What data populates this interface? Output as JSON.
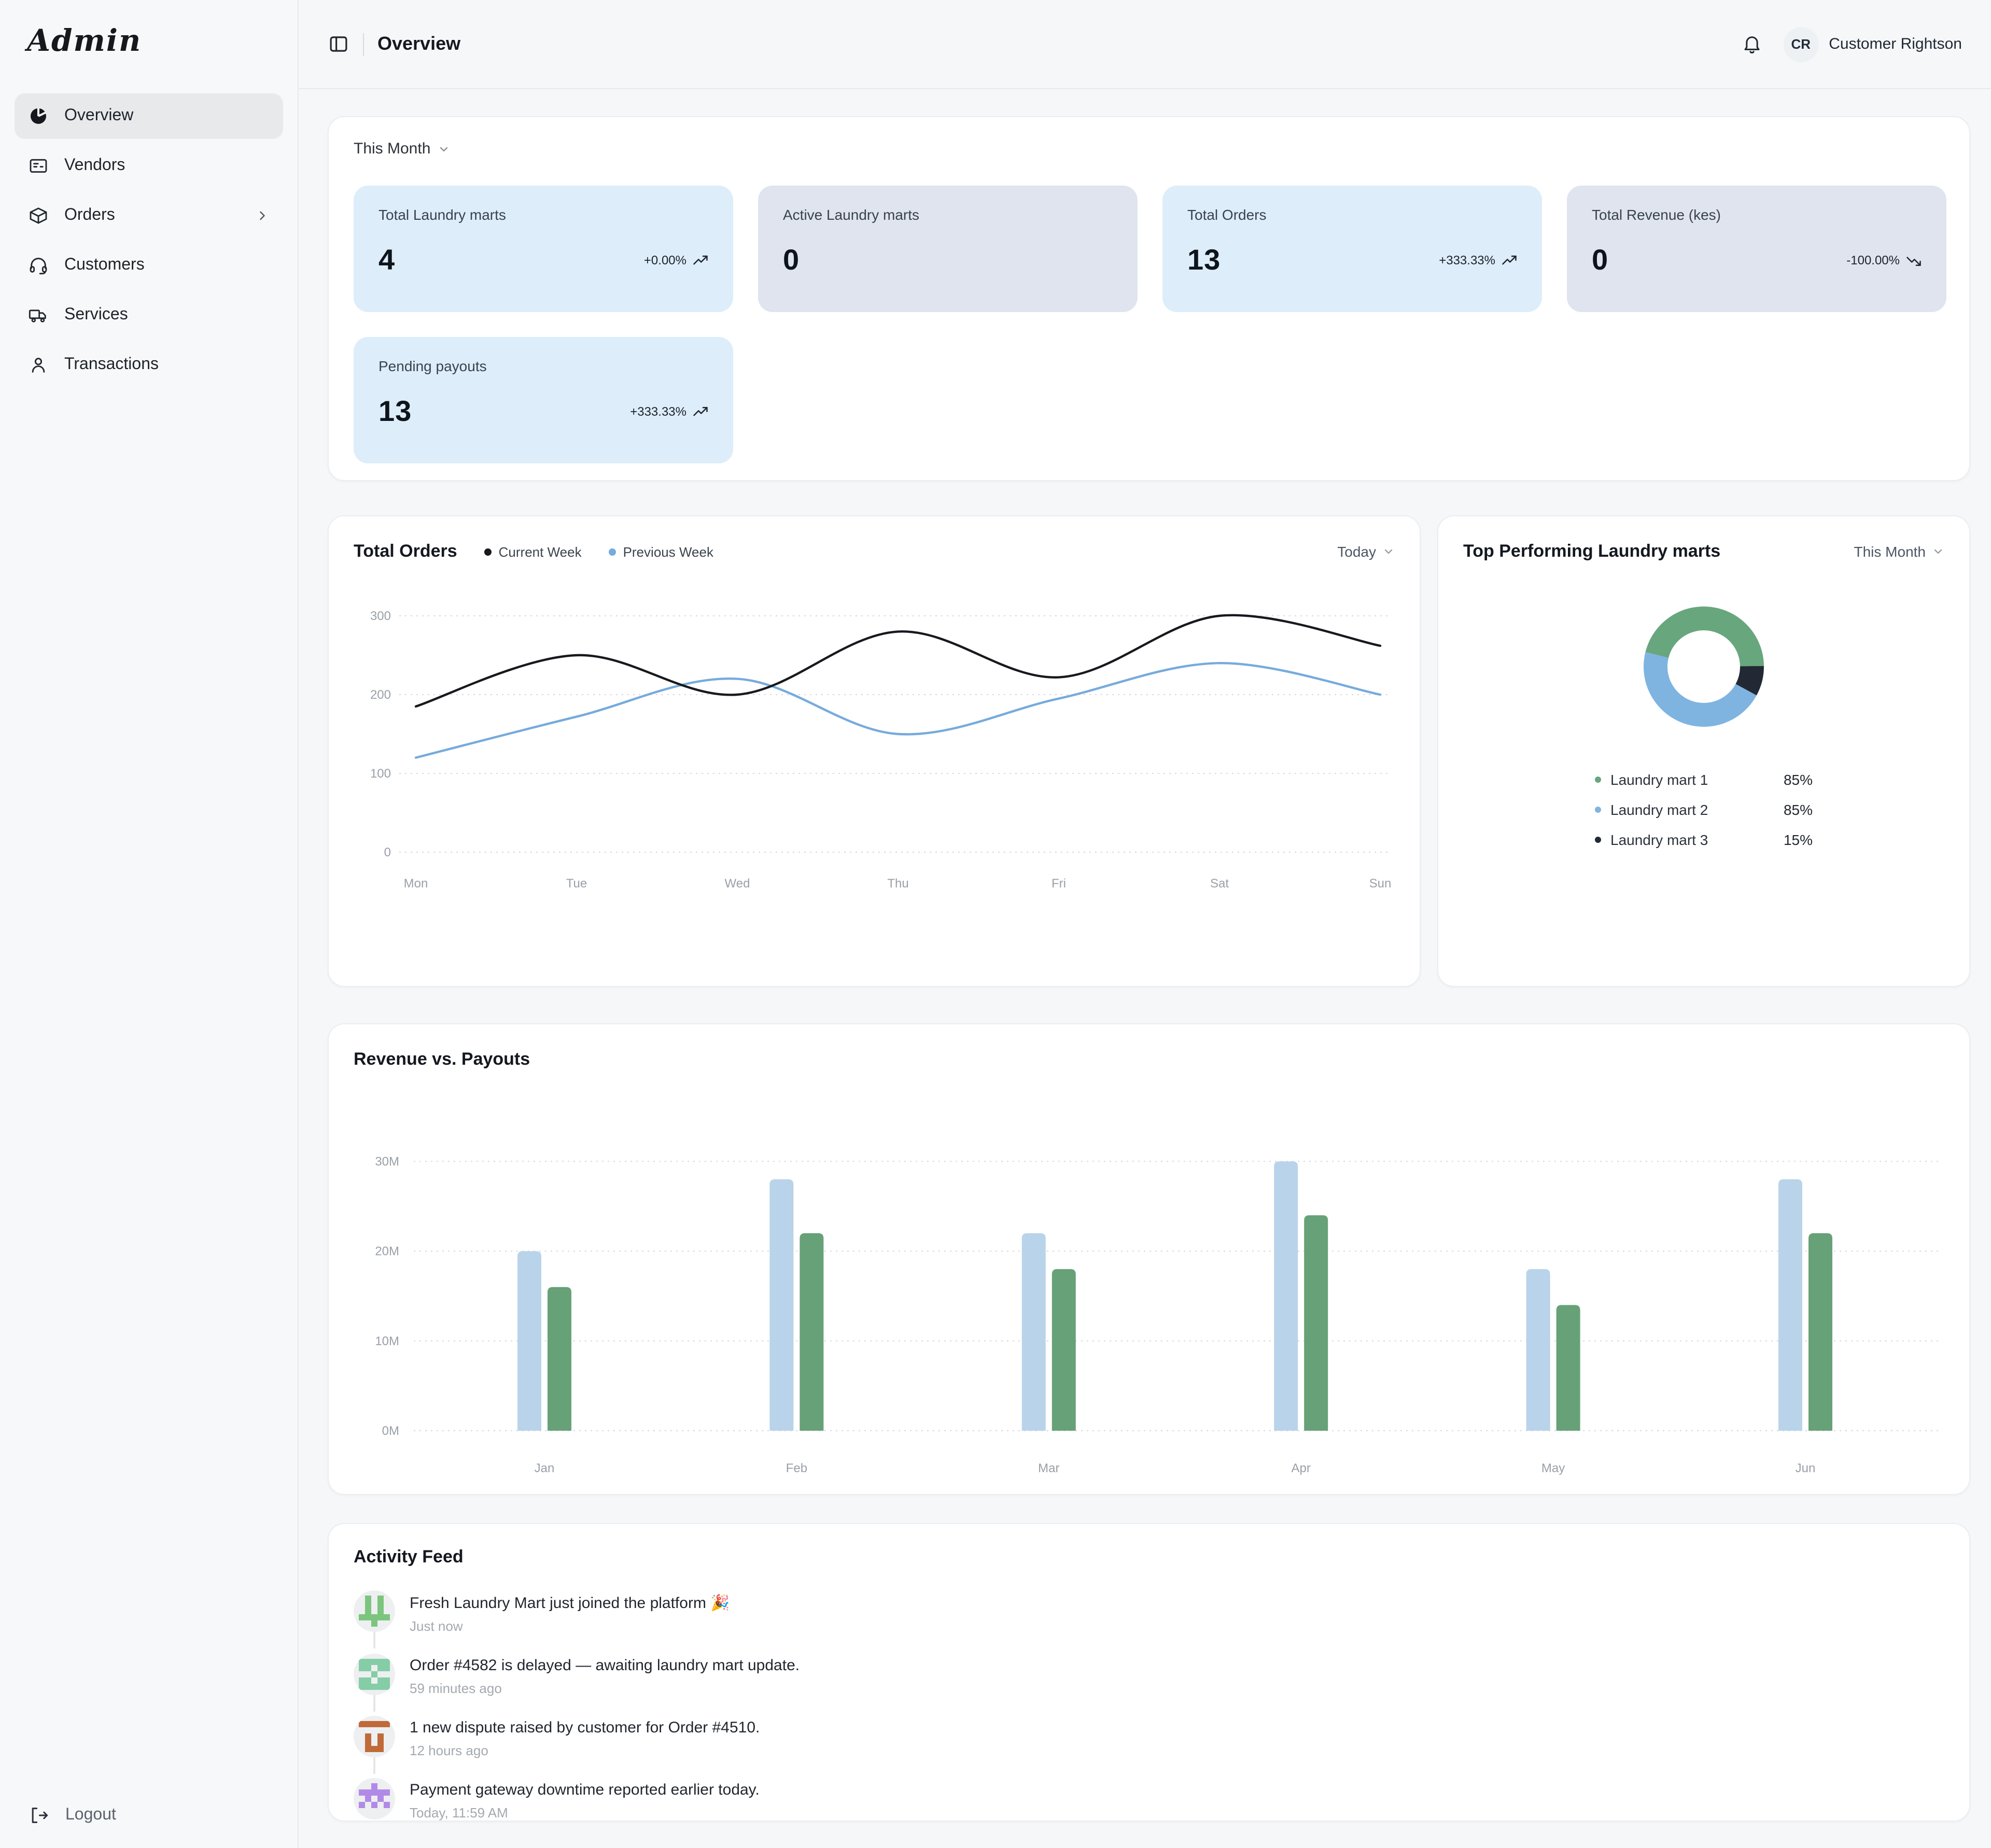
{
  "colors": {
    "page_bg": "#f6f7f8",
    "panel_bg": "#ffffff",
    "card_blue_bg": "#ddedfa",
    "card_gray_bg": "#dfe4ef",
    "grid_dotted": "#d6d9dd",
    "axis_tick": "#9aa0a8",
    "trend_icon": "#20262d"
  },
  "sidebar": {
    "logo": "Admin",
    "items": [
      {
        "label": "Overview",
        "icon": "pie-chart",
        "active": true,
        "chevron": false
      },
      {
        "label": "Vendors",
        "icon": "id-card",
        "active": false,
        "chevron": false
      },
      {
        "label": "Orders",
        "icon": "package",
        "active": false,
        "chevron": true
      },
      {
        "label": "Customers",
        "icon": "headset",
        "active": false,
        "chevron": false
      },
      {
        "label": "Services",
        "icon": "truck",
        "active": false,
        "chevron": false
      },
      {
        "label": "Transactions",
        "icon": "person",
        "active": false,
        "chevron": false
      }
    ],
    "logout_label": "Logout"
  },
  "header": {
    "title": "Overview",
    "avatar_initials": "CR",
    "user_name": "Customer Rightson"
  },
  "stats": {
    "filter_label": "This Month",
    "cards": [
      {
        "label": "Total Laundry marts",
        "value": "4",
        "delta": "+0.00%",
        "trend": "up",
        "style": "blue"
      },
      {
        "label": "Active Laundry marts",
        "value": "0",
        "delta": "",
        "trend": "none",
        "style": "gray"
      },
      {
        "label": "Total Orders",
        "value": "13",
        "delta": "+333.33%",
        "trend": "up",
        "style": "blue"
      },
      {
        "label": "Total Revenue (kes)",
        "value": "0",
        "delta": "-100.00%",
        "trend": "down",
        "style": "gray"
      },
      {
        "label": "Pending payouts",
        "value": "13",
        "delta": "+333.33%",
        "trend": "up",
        "style": "blue"
      }
    ]
  },
  "chart_data": [
    {
      "id": "total-orders-line",
      "type": "line",
      "title": "Total Orders",
      "range_selector": "Today",
      "x": [
        "Mon",
        "Tue",
        "Wed",
        "Thu",
        "Fri",
        "Sat",
        "Sun"
      ],
      "ylim": [
        0,
        300
      ],
      "yticks": [
        0,
        100,
        200,
        300
      ],
      "grid": "dotted-horizontal",
      "legend_position": "top-inline",
      "series": [
        {
          "name": "Current Week",
          "color": "#17191d",
          "values": [
            185,
            250,
            200,
            280,
            222,
            300,
            262
          ]
        },
        {
          "name": "Previous Week",
          "color": "#76abdc",
          "values": [
            120,
            172,
            220,
            150,
            195,
            240,
            200
          ]
        }
      ]
    },
    {
      "id": "top-performing-donut",
      "type": "pie",
      "donut": true,
      "title": "Top Performing Laundry marts",
      "range_selector": "This Month",
      "start_angle_deg": 284,
      "draw_order": [
        0,
        2,
        1
      ],
      "segments": [
        {
          "label": "Laundry mart 1",
          "value": 85,
          "percent_label": "85%",
          "color": "#68a67d"
        },
        {
          "label": "Laundry mart 2",
          "value": 85,
          "percent_label": "85%",
          "color": "#7fb4e0"
        },
        {
          "label": "Laundry mart 3",
          "value": 15,
          "percent_label": "15%",
          "color": "#222834"
        }
      ]
    },
    {
      "id": "revenue-vs-payouts",
      "type": "bar",
      "title": "Revenue vs. Payouts",
      "categories": [
        "Jan",
        "Feb",
        "Mar",
        "Apr",
        "May",
        "Jun"
      ],
      "ylim": [
        0,
        30
      ],
      "ytick_labels": [
        "0M",
        "10M",
        "20M",
        "30M"
      ],
      "grid": "dotted-horizontal",
      "legend_position": "none",
      "series": [
        {
          "name": "Revenue",
          "color": "#b9d3ea",
          "values": [
            20,
            28,
            22,
            30,
            18,
            28
          ]
        },
        {
          "name": "Payouts",
          "color": "#67a177",
          "values": [
            16,
            22,
            18,
            24,
            14,
            22
          ]
        }
      ]
    }
  ],
  "activity": {
    "title": "Activity Feed",
    "items": [
      {
        "text": "Fresh Laundry Mart just joined the platform 🎉",
        "time": "Just now",
        "icon_color": "#7cc57e",
        "pattern": [
          [
            0,
            1
          ],
          [
            0,
            3
          ],
          [
            1,
            1
          ],
          [
            1,
            3
          ],
          [
            2,
            1
          ],
          [
            2,
            3
          ],
          [
            3,
            0
          ],
          [
            3,
            1
          ],
          [
            3,
            2
          ],
          [
            3,
            3
          ],
          [
            3,
            4
          ],
          [
            4,
            2
          ]
        ]
      },
      {
        "text": "Order #4582 is delayed — awaiting laundry mart update.",
        "time": "59 minutes ago",
        "icon_color": "#85cda6",
        "pattern": [
          [
            0,
            0
          ],
          [
            0,
            1
          ],
          [
            0,
            2
          ],
          [
            0,
            3
          ],
          [
            0,
            4
          ],
          [
            1,
            0
          ],
          [
            1,
            1
          ],
          [
            1,
            3
          ],
          [
            1,
            4
          ],
          [
            2,
            2
          ],
          [
            3,
            0
          ],
          [
            3,
            1
          ],
          [
            3,
            3
          ],
          [
            3,
            4
          ],
          [
            4,
            0
          ],
          [
            4,
            1
          ],
          [
            4,
            2
          ],
          [
            4,
            3
          ],
          [
            4,
            4
          ]
        ]
      },
      {
        "text": "1 new dispute raised by customer for Order #4510.",
        "time": "12 hours ago",
        "icon_color": "#c06a3a",
        "pattern": [
          [
            0,
            0
          ],
          [
            0,
            1
          ],
          [
            0,
            2
          ],
          [
            0,
            3
          ],
          [
            0,
            4
          ],
          [
            2,
            1
          ],
          [
            2,
            3
          ],
          [
            3,
            1
          ],
          [
            3,
            3
          ],
          [
            4,
            1
          ],
          [
            4,
            2
          ],
          [
            4,
            3
          ]
        ]
      },
      {
        "text": "Payment gateway downtime reported earlier today.",
        "time": "Today, 11:59 AM",
        "icon_color": "#b18ae8",
        "pattern": [
          [
            0,
            2
          ],
          [
            1,
            0
          ],
          [
            1,
            1
          ],
          [
            1,
            2
          ],
          [
            1,
            3
          ],
          [
            1,
            4
          ],
          [
            2,
            1
          ],
          [
            2,
            3
          ],
          [
            3,
            0
          ],
          [
            3,
            2
          ],
          [
            3,
            4
          ]
        ]
      }
    ]
  }
}
